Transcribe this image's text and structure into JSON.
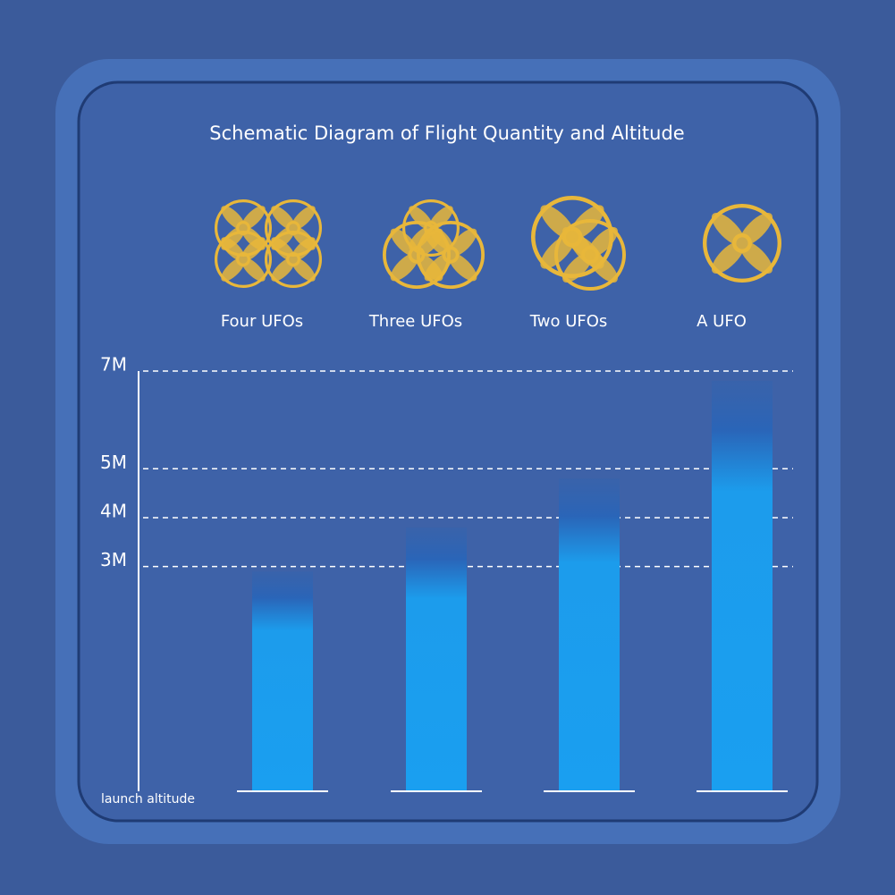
{
  "chart_data": {
    "type": "bar",
    "title": "Schematic Diagram of Flight Quantity and Altitude",
    "categories": [
      "Four UFOs",
      "Three UFOs",
      "Two UFOs",
      "A UFO"
    ],
    "values": [
      2.9,
      3.8,
      4.8,
      6.8
    ],
    "ylim": [
      -1.6,
      7
    ],
    "yticks": [
      {
        "value": 3,
        "label": "3M"
      },
      {
        "value": 4,
        "label": "4M"
      },
      {
        "value": 5,
        "label": "5M"
      },
      {
        "value": 7,
        "label": "7M"
      }
    ],
    "baseline_label": "launch altitude",
    "grid": true
  }
}
